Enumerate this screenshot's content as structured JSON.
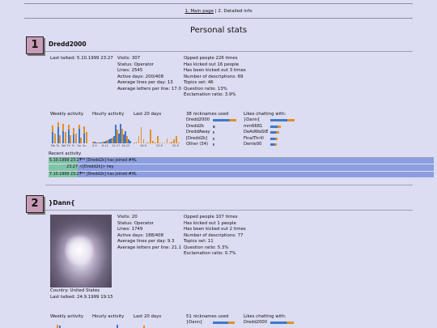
{
  "nav": {
    "main_page": "1. Main page",
    "separator": " | ",
    "detailed": "2. Detailed info"
  },
  "title": "Personal stats",
  "users": [
    {
      "rank": "1",
      "name": "Dredd2000",
      "last_talked": "Last talked: 5.10.1999 23:27",
      "stats": [
        "Visits: 307",
        "Status: Operator",
        "Lines: 2545",
        "Active days: 200/408",
        "Average lines per day: 13",
        "Average letters per line: 17.0"
      ],
      "extra": [
        "Opped people 226 times",
        "Has kicked out 16 people",
        "Has been kicked out 3 times",
        "Number of descriptions: 69",
        "Topics set: 46",
        "Question ratio: 13%",
        "Exclamation ratio: 3.9%"
      ],
      "weekly_label": "Weekly activity",
      "hourly_label": "Hourly activity",
      "last20_label": "Last 20 days",
      "weekly_days": [
        "Mo",
        "Tu",
        "We",
        "Th",
        "Fr",
        "Sa",
        "Su"
      ],
      "weekly": [
        {
          "blue": 0.45,
          "orange": 0.25
        },
        {
          "blue": 0.65,
          "orange": 0.2
        },
        {
          "blue": 0.5,
          "orange": 0.3
        },
        {
          "blue": 0.55,
          "orange": 0.2
        },
        {
          "blue": 0.35,
          "orange": 0.25
        },
        {
          "blue": 0.6,
          "orange": 0.15
        },
        {
          "blue": 0.4,
          "orange": 0.3
        }
      ],
      "hourly_ticks": [
        "0-5",
        "6-11",
        "12-17",
        "18-23"
      ],
      "hourly": [
        0.06,
        0.05,
        0.04,
        0.03,
        0.02,
        0.03,
        0.05,
        0.08,
        0.1,
        0.12,
        0.15,
        0.2,
        0.22,
        0.3,
        0.75,
        0.55,
        0.4,
        0.8,
        0.6,
        0.35,
        0.5,
        0.3,
        0.15,
        0.1
      ],
      "last20_ticks": [
        "16.9",
        "23.9",
        "30.9"
      ],
      "last20": [
        0.02,
        0.05,
        0.3,
        0.65,
        0.15,
        0.02,
        0.03,
        0.55,
        0.1,
        0.02,
        0.3,
        0.02,
        0.04,
        0.03,
        0.2,
        0.02,
        0.05,
        0.15,
        0.3,
        0.02
      ],
      "nick_count": "38 nicknames used",
      "nicks": [
        {
          "name": "Dredd2000",
          "value": 0.92
        },
        {
          "name": "Dredd2k",
          "value": 0.08
        },
        {
          "name": "DreddAway",
          "value": 0.03
        },
        {
          "name": "[Dredd2k]",
          "value": 0.03
        },
        {
          "name": "Other (34)",
          "value": 0.05
        }
      ],
      "likes_label": "Likes chatting with:",
      "likes": [
        {
          "name": "}Dann{",
          "value": 0.95
        },
        {
          "name": "mm6681",
          "value": 0.4
        },
        {
          "name": "DeAdWaStE",
          "value": 0.33
        },
        {
          "name": "FinalThrill",
          "value": 0.28
        },
        {
          "name": "Dente00",
          "value": 0.24
        }
      ],
      "recent_label": "Recent activity",
      "recent": [
        {
          "time": "5.10.1999 23:27",
          "msg": "*** [Dredd2k] has joined #HL"
        },
        {
          "time": "23:27",
          "msg": "<[Dredd2k]> hey"
        },
        {
          "time": "7.10.1999 23:27",
          "msg": "*** [Dredd2k] has joined #HL"
        }
      ]
    },
    {
      "rank": "2",
      "name": "}Dann{",
      "country": "Country: United States",
      "last_talked": "Last talked: 24.9.1999 19:15",
      "stats": [
        "Visits: 20",
        "Status: Operator",
        "Lines: 1749",
        "Active days: 188/408",
        "Average lines per day: 9.3",
        "Average letters per line: 21.1"
      ],
      "extra": [
        "Opped people 107 times",
        "Has kicked out 1 people",
        "Has been kicked out 2 times",
        "Number of descriptions: 77",
        "Topics set: 11",
        "Question ratio: 5.3%",
        "Exclamation ratio: 0.7%"
      ],
      "weekly_label": "Weekly activity",
      "hourly_label": "Hourly activity",
      "last20_label": "Last 20 days",
      "nick_count": "51 nicknames used",
      "nicks": [
        {
          "name": "}Dann{",
          "value": 0.85
        }
      ],
      "likes_label": "Likes chatting with:",
      "likes": [
        {
          "name": "Dredd2000",
          "value": 0.9
        }
      ]
    }
  ],
  "colors": {
    "bar_blue": "#3f78c8",
    "bar_orange": "#e0902a",
    "recent_bg": "#8c9ee0",
    "recent_time": "#7fc4a6",
    "rank_box": "#c89cb6"
  }
}
